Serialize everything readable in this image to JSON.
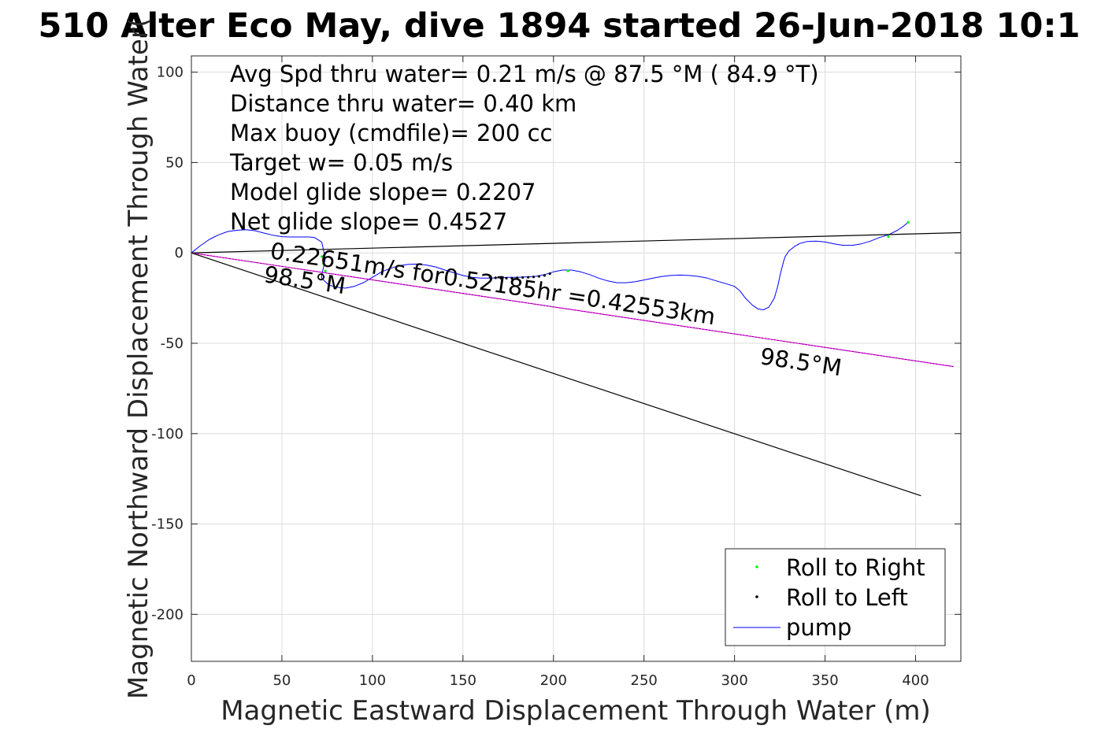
{
  "chart_data": {
    "type": "line",
    "title": "510 Alter Eco May, dive 1894 started 26-Jun-2018 10:1",
    "xlabel": "Magnetic Eastward Displacement Through Water (m)",
    "ylabel": "Magnetic Northward Displacement Through Water(",
    "xlim": [
      0,
      425
    ],
    "ylim": [
      -226,
      109
    ],
    "xticks": [
      "0",
      "50",
      "100",
      "150",
      "200",
      "250",
      "300",
      "350",
      "400"
    ],
    "yticks": [
      "100",
      "50",
      "0",
      "-50",
      "-100",
      "-150",
      "-200"
    ],
    "grid": true,
    "annotations": [
      "Avg Spd thru water=  0.21 m/s @  87.5 °M ( 84.9 °T)",
      "Distance thru water=  0.40 km",
      "Max buoy (cmdfile)= 200 cc",
      "Target w= 0.05 m/s",
      "Model glide slope= 0.2207",
      "Net glide slope= 0.4527"
    ],
    "current_label": "0.22651m/s for0.52185hr =0.42553km",
    "heading_label_near": "98.5°M",
    "heading_label_far": "98.5°M",
    "legend": {
      "position": "bottom-right",
      "entries": [
        "Roll to Right",
        "Roll to Left",
        "pump"
      ]
    },
    "colors": {
      "track": "#0000ff",
      "roll_right": "#00ff00",
      "roll_left": "#000000",
      "heading": "#ff00ff",
      "lines": "#000000"
    },
    "series": [
      {
        "name": "track",
        "x": [
          0,
          5,
          10,
          15,
          20,
          25,
          30,
          35,
          40,
          45,
          50,
          55,
          60,
          65,
          68,
          72,
          74,
          73,
          72,
          72,
          74,
          76,
          80,
          85,
          90,
          95,
          100,
          105,
          110,
          115,
          120,
          125,
          130,
          135,
          140,
          145,
          150,
          155,
          160,
          165,
          170,
          175,
          180,
          185,
          190,
          195,
          200,
          205,
          210,
          215,
          220,
          225,
          230,
          235,
          240,
          245,
          250,
          255,
          260,
          265,
          270,
          275,
          280,
          285,
          290,
          295,
          300,
          303,
          306,
          310,
          313,
          316,
          319,
          322,
          324,
          325,
          326,
          327,
          328,
          330,
          333,
          336,
          340,
          345,
          350,
          355,
          360,
          365,
          370,
          375,
          380,
          385,
          390,
          393,
          396
        ],
        "y": [
          0,
          4,
          7.5,
          10,
          11.8,
          12.5,
          12.8,
          12.3,
          11,
          9.8,
          9,
          8.8,
          8.8,
          8.8,
          8.5,
          6,
          -3,
          -8,
          -12,
          -14,
          -16,
          -17.8,
          -19,
          -19.5,
          -18.5,
          -16.5,
          -13.5,
          -10.5,
          -8.5,
          -7,
          -6.3,
          -6.2,
          -6.8,
          -7.8,
          -9.5,
          -11,
          -12.5,
          -13.5,
          -14,
          -14,
          -13.8,
          -13.5,
          -13.5,
          -13.3,
          -13,
          -12,
          -10.5,
          -9.5,
          -9.5,
          -10.5,
          -12,
          -14,
          -15.5,
          -16.5,
          -16.5,
          -16,
          -15,
          -14,
          -13,
          -12.5,
          -12.3,
          -12.5,
          -13,
          -14,
          -15.5,
          -17,
          -18.5,
          -21,
          -25,
          -29,
          -31,
          -31.5,
          -30,
          -25,
          -18,
          -13,
          -9,
          -5,
          -2,
          1,
          3.5,
          5.2,
          6.3,
          6.5,
          6,
          5,
          4.2,
          4.2,
          5,
          6.5,
          8.5,
          10,
          12.5,
          14.5,
          17
        ]
      },
      {
        "name": "Roll to Right",
        "x": [
          72,
          73,
          74,
          208,
          385,
          396
        ],
        "y": [
          -2,
          -6,
          -10,
          -10,
          9,
          17
        ]
      },
      {
        "name": "Roll to Left",
        "x": [
          165,
          168,
          171,
          174,
          177,
          180,
          183,
          186,
          189,
          192,
          195,
          198
        ],
        "y": [
          -13.5,
          -13.8,
          -14,
          -14,
          -14,
          -13.8,
          -13.6,
          -13.5,
          -13.3,
          -13,
          -12.5,
          -11.5
        ]
      },
      {
        "name": "Model glide line",
        "x": [
          0,
          425
        ],
        "y": [
          0,
          11.2
        ]
      },
      {
        "name": "Heading 98.5°M",
        "x": [
          0,
          421
        ],
        "y": [
          0,
          -62.9
        ]
      },
      {
        "name": "Net glide line",
        "x": [
          0,
          403
        ],
        "y": [
          0,
          -134.4
        ]
      }
    ]
  }
}
